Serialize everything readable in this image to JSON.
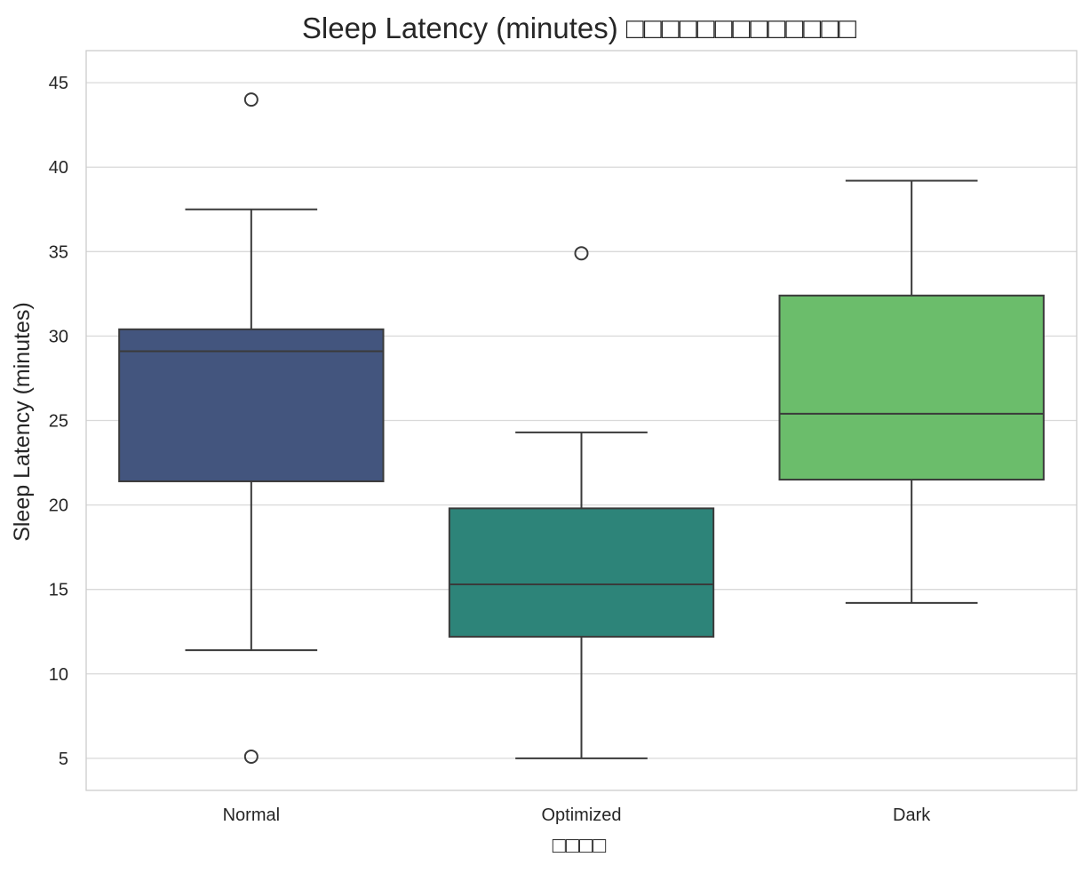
{
  "chart_data": {
    "type": "box",
    "title": "Sleep Latency (minutes) □□□□□□□□□□□□□",
    "xlabel": "□□□□",
    "ylabel": "Sleep Latency (minutes)",
    "ylim": [
      3.1,
      46.9
    ],
    "yticks": [
      5,
      10,
      15,
      20,
      25,
      30,
      35,
      40,
      45
    ],
    "grid": true,
    "categories": [
      "Normal",
      "Optimized",
      "Dark"
    ],
    "boxes": [
      {
        "category": "Normal",
        "color": "#43557e",
        "whisker_low": 11.4,
        "q1": 21.4,
        "median": 29.1,
        "q3": 30.4,
        "whisker_high": 37.5,
        "outliers": [
          44.0,
          5.1
        ]
      },
      {
        "category": "Optimized",
        "color": "#2d8479",
        "whisker_low": 5.0,
        "q1": 12.2,
        "median": 15.3,
        "q3": 19.8,
        "whisker_high": 24.3,
        "outliers": [
          34.9
        ]
      },
      {
        "category": "Dark",
        "color": "#6bbd6b",
        "whisker_low": 14.2,
        "q1": 21.5,
        "median": 25.4,
        "q3": 32.4,
        "whisker_high": 39.2,
        "outliers": []
      }
    ]
  }
}
